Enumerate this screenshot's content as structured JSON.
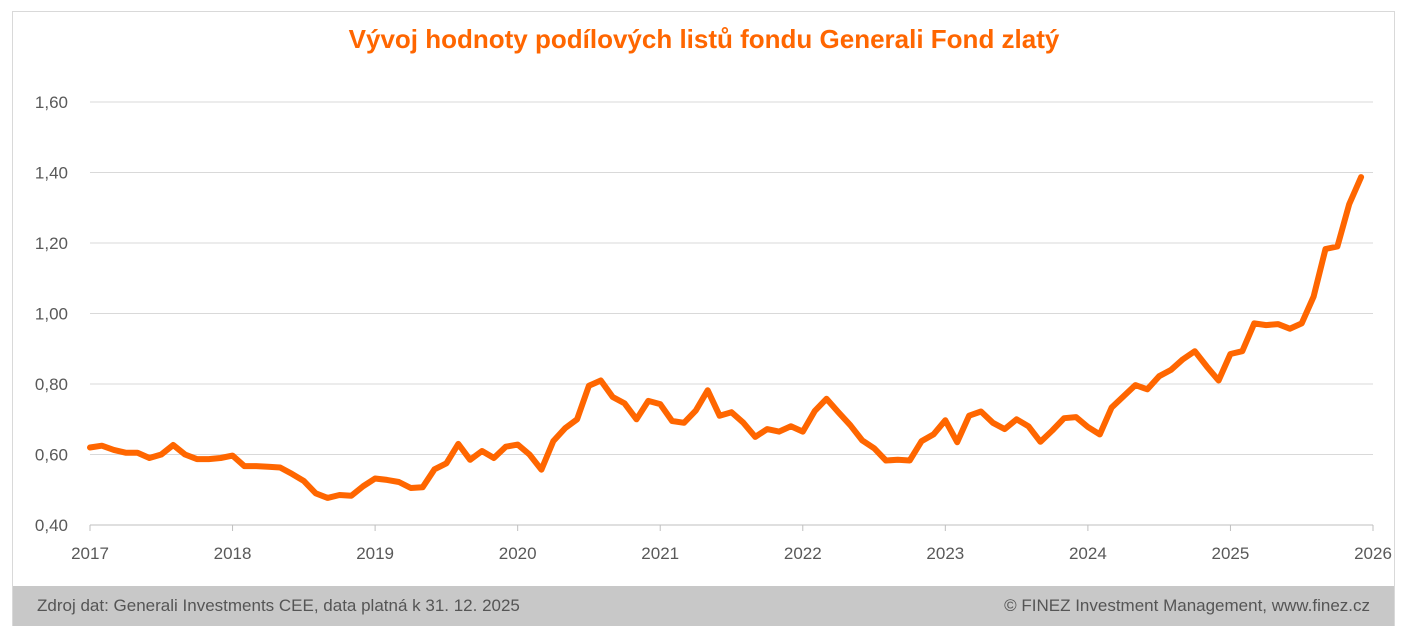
{
  "chart_data": {
    "type": "line",
    "title": "Vývoj hodnoty podílových listů fondu Generali Fond zlatý",
    "xlabel": "",
    "ylabel": "",
    "ylim": [
      0.4,
      1.6
    ],
    "xlim": [
      "2017-01",
      "2026-01"
    ],
    "y_ticks": [
      "0,40",
      "0,60",
      "0,80",
      "1,00",
      "1,20",
      "1,40",
      "1,60"
    ],
    "y_tick_values": [
      0.4,
      0.6,
      0.8,
      1.0,
      1.2,
      1.4,
      1.6
    ],
    "x_ticks": [
      "2017",
      "2018",
      "2019",
      "2020",
      "2021",
      "2022",
      "2023",
      "2024",
      "2025",
      "2026"
    ],
    "grid": true,
    "line_color": "#ff6600",
    "series": [
      {
        "x": [
          "2017-01",
          "2017-02",
          "2017-03",
          "2017-04",
          "2017-05",
          "2017-06",
          "2017-07",
          "2017-08",
          "2017-09",
          "2017-10",
          "2017-11",
          "2017-12",
          "2018-01",
          "2018-02",
          "2018-03",
          "2018-04",
          "2018-05",
          "2018-06",
          "2018-07",
          "2018-08",
          "2018-09",
          "2018-10",
          "2018-11",
          "2018-12",
          "2019-01",
          "2019-02",
          "2019-03",
          "2019-04",
          "2019-05",
          "2019-06",
          "2019-07",
          "2019-08",
          "2019-09",
          "2019-10",
          "2019-11",
          "2019-12",
          "2020-01",
          "2020-02",
          "2020-03",
          "2020-04",
          "2020-05",
          "2020-06",
          "2020-07",
          "2020-08",
          "2020-09",
          "2020-10",
          "2020-11",
          "2020-12",
          "2021-01",
          "2021-02",
          "2021-03",
          "2021-04",
          "2021-05",
          "2021-06",
          "2021-07",
          "2021-08",
          "2021-09",
          "2021-10",
          "2021-11",
          "2021-12",
          "2022-01",
          "2022-02",
          "2022-03",
          "2022-04",
          "2022-05",
          "2022-06",
          "2022-07",
          "2022-08",
          "2022-09",
          "2022-10",
          "2022-11",
          "2022-12",
          "2023-01",
          "2023-02",
          "2023-03",
          "2023-04",
          "2023-05",
          "2023-06",
          "2023-07",
          "2023-08",
          "2023-09",
          "2023-10",
          "2023-11",
          "2023-12",
          "2024-01",
          "2024-02",
          "2024-03",
          "2024-04",
          "2024-05",
          "2024-06",
          "2024-07",
          "2024-08",
          "2024-09",
          "2024-10",
          "2024-11",
          "2024-12",
          "2025-01",
          "2025-02",
          "2025-03",
          "2025-04",
          "2025-05",
          "2025-06",
          "2025-07",
          "2025-08",
          "2025-09",
          "2025-10",
          "2025-11",
          "2025-12"
        ],
        "values": [
          0.62,
          0.625,
          0.613,
          0.605,
          0.605,
          0.59,
          0.6,
          0.627,
          0.6,
          0.587,
          0.587,
          0.59,
          0.597,
          0.567,
          0.567,
          0.565,
          0.563,
          0.545,
          0.525,
          0.49,
          0.477,
          0.485,
          0.483,
          0.51,
          0.532,
          0.528,
          0.522,
          0.505,
          0.507,
          0.558,
          0.575,
          0.63,
          0.585,
          0.61,
          0.59,
          0.622,
          0.628,
          0.6,
          0.557,
          0.638,
          0.675,
          0.7,
          0.795,
          0.81,
          0.763,
          0.745,
          0.7,
          0.752,
          0.743,
          0.695,
          0.69,
          0.725,
          0.782,
          0.71,
          0.72,
          0.69,
          0.65,
          0.672,
          0.665,
          0.68,
          0.665,
          0.723,
          0.758,
          0.72,
          0.683,
          0.64,
          0.618,
          0.583,
          0.585,
          0.583,
          0.638,
          0.657,
          0.697,
          0.635,
          0.71,
          0.722,
          0.69,
          0.672,
          0.7,
          0.68,
          0.636,
          0.668,
          0.703,
          0.706,
          0.678,
          0.657,
          0.733,
          0.765,
          0.797,
          0.785,
          0.822,
          0.84,
          0.87,
          0.893,
          0.85,
          0.81,
          0.885,
          0.893,
          0.972,
          0.967,
          0.97,
          0.957,
          0.972,
          1.048,
          1.183,
          1.19,
          1.31,
          1.387
        ]
      }
    ]
  },
  "footer": {
    "source": "Zdroj dat: Generali Investments CEE, data platná k 31. 12. 2025",
    "copyright": "© FINEZ Investment Management, www.finez.cz"
  }
}
